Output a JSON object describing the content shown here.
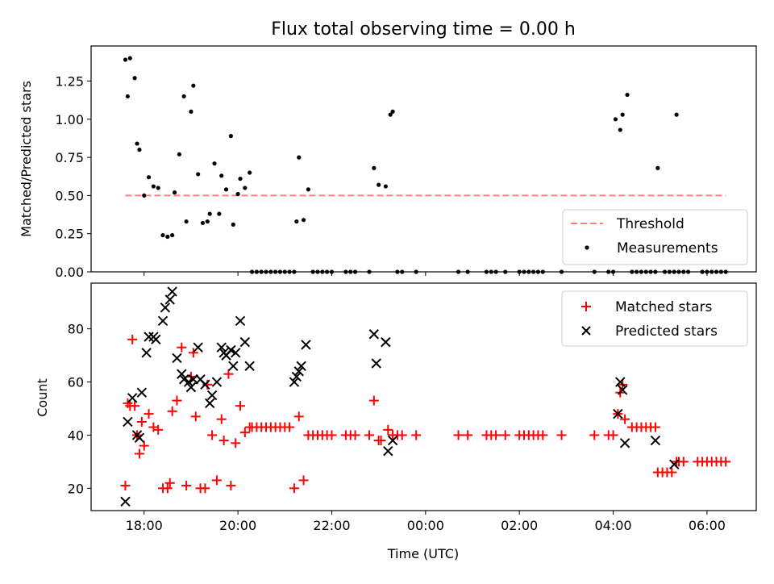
{
  "chart_data": [
    {
      "type": "scatter",
      "title": "Flux total observing time = 0.00 h",
      "xlabel": "",
      "ylabel": "Matched/Predicted stars",
      "xlim": [
        16.87,
        31.05
      ],
      "ylim": [
        0,
        1.48
      ],
      "yticks": [
        0.0,
        0.25,
        0.5,
        0.75,
        1.0,
        1.25
      ],
      "ytick_labels": [
        "0.00",
        "0.25",
        "0.50",
        "0.75",
        "1.00",
        "1.25"
      ],
      "legend_position": "lower-right",
      "legend": [
        "Threshold",
        "Measurements"
      ],
      "threshold": {
        "name": "Threshold",
        "value": 0.5,
        "x_range": [
          17.6,
          30.4
        ],
        "color": "#ff7f7f",
        "style": "dashed"
      },
      "series": [
        {
          "name": "Measurements",
          "color": "#000000",
          "marker": "dot",
          "points": [
            [
              17.6,
              1.39
            ],
            [
              17.65,
              1.15
            ],
            [
              17.7,
              1.4
            ],
            [
              17.8,
              1.27
            ],
            [
              17.85,
              0.84
            ],
            [
              17.9,
              0.8
            ],
            [
              18.0,
              0.5
            ],
            [
              18.1,
              0.62
            ],
            [
              18.2,
              0.56
            ],
            [
              18.3,
              0.55
            ],
            [
              18.4,
              0.24
            ],
            [
              18.5,
              0.23
            ],
            [
              18.6,
              0.24
            ],
            [
              18.65,
              0.52
            ],
            [
              18.75,
              0.77
            ],
            [
              18.85,
              1.15
            ],
            [
              18.9,
              0.33
            ],
            [
              19.0,
              1.05
            ],
            [
              19.05,
              1.22
            ],
            [
              19.15,
              0.64
            ],
            [
              19.25,
              0.32
            ],
            [
              19.35,
              0.33
            ],
            [
              19.4,
              0.38
            ],
            [
              19.5,
              0.71
            ],
            [
              19.6,
              0.38
            ],
            [
              19.65,
              0.63
            ],
            [
              19.75,
              0.54
            ],
            [
              19.85,
              0.89
            ],
            [
              19.9,
              0.31
            ],
            [
              20.0,
              0.51
            ],
            [
              20.05,
              0.61
            ],
            [
              20.15,
              0.55
            ],
            [
              20.25,
              0.65
            ],
            [
              20.3,
              0.0
            ],
            [
              20.4,
              0.0
            ],
            [
              20.5,
              0.0
            ],
            [
              20.6,
              0.0
            ],
            [
              20.7,
              0.0
            ],
            [
              20.8,
              0.0
            ],
            [
              20.9,
              0.0
            ],
            [
              21.0,
              0.0
            ],
            [
              21.1,
              0.0
            ],
            [
              21.2,
              0.0
            ],
            [
              21.25,
              0.33
            ],
            [
              21.3,
              0.75
            ],
            [
              21.4,
              0.34
            ],
            [
              21.5,
              0.54
            ],
            [
              21.6,
              0.0
            ],
            [
              21.7,
              0.0
            ],
            [
              21.8,
              0.0
            ],
            [
              21.9,
              0.0
            ],
            [
              22.0,
              0.0
            ],
            [
              22.3,
              0.0
            ],
            [
              22.4,
              0.0
            ],
            [
              22.5,
              0.0
            ],
            [
              22.8,
              0.0
            ],
            [
              22.9,
              0.68
            ],
            [
              23.0,
              0.57
            ],
            [
              23.15,
              0.56
            ],
            [
              23.25,
              1.03
            ],
            [
              23.3,
              1.05
            ],
            [
              23.4,
              0.0
            ],
            [
              23.5,
              0.0
            ],
            [
              23.8,
              0.0
            ],
            [
              24.7,
              0.0
            ],
            [
              24.9,
              0.0
            ],
            [
              25.3,
              0.0
            ],
            [
              25.4,
              0.0
            ],
            [
              25.5,
              0.0
            ],
            [
              25.7,
              0.0
            ],
            [
              26.0,
              0.0
            ],
            [
              26.1,
              0.0
            ],
            [
              26.2,
              0.0
            ],
            [
              26.3,
              0.0
            ],
            [
              26.4,
              0.0
            ],
            [
              26.5,
              0.0
            ],
            [
              26.9,
              0.0
            ],
            [
              27.6,
              0.0
            ],
            [
              27.9,
              0.0
            ],
            [
              28.0,
              0.0
            ],
            [
              28.05,
              1.0
            ],
            [
              28.15,
              0.93
            ],
            [
              28.2,
              1.03
            ],
            [
              28.3,
              1.16
            ],
            [
              28.4,
              0.0
            ],
            [
              28.5,
              0.0
            ],
            [
              28.6,
              0.0
            ],
            [
              28.7,
              0.0
            ],
            [
              28.8,
              0.0
            ],
            [
              28.9,
              0.0
            ],
            [
              28.95,
              0.68
            ],
            [
              29.1,
              0.0
            ],
            [
              29.2,
              0.0
            ],
            [
              29.3,
              0.0
            ],
            [
              29.35,
              1.03
            ],
            [
              29.4,
              0.0
            ],
            [
              29.5,
              0.0
            ],
            [
              29.6,
              0.0
            ],
            [
              29.9,
              0.0
            ],
            [
              30.0,
              0.0
            ],
            [
              30.1,
              0.0
            ],
            [
              30.2,
              0.0
            ],
            [
              30.3,
              0.0
            ],
            [
              30.4,
              0.0
            ]
          ]
        }
      ]
    },
    {
      "type": "scatter",
      "title": "",
      "xlabel": "Time (UTC)",
      "ylabel": "Count",
      "xlim": [
        16.87,
        31.05
      ],
      "ylim": [
        11.6,
        97.2
      ],
      "yticks": [
        20,
        40,
        60,
        80
      ],
      "ytick_labels": [
        "20",
        "40",
        "60",
        "80"
      ],
      "xticks": [
        18,
        20,
        22,
        24,
        26,
        28,
        30
      ],
      "xtick_labels": [
        "18:00",
        "20:00",
        "22:00",
        "00:00",
        "02:00",
        "04:00",
        "06:00"
      ],
      "legend_position": "upper-right",
      "legend": [
        "Matched stars",
        "Predicted stars"
      ],
      "series": [
        {
          "name": "Matched stars",
          "color": "#ff0000",
          "marker": "plus",
          "points": [
            [
              17.6,
              21
            ],
            [
              17.65,
              52
            ],
            [
              17.7,
              51
            ],
            [
              17.75,
              76
            ],
            [
              17.8,
              51
            ],
            [
              17.85,
              40
            ],
            [
              17.9,
              33
            ],
            [
              17.95,
              45
            ],
            [
              18.0,
              36
            ],
            [
              18.1,
              48
            ],
            [
              18.2,
              43
            ],
            [
              18.3,
              42
            ],
            [
              18.4,
              20
            ],
            [
              18.5,
              20
            ],
            [
              18.55,
              22
            ],
            [
              18.6,
              49
            ],
            [
              18.7,
              53
            ],
            [
              18.8,
              73
            ],
            [
              18.9,
              21
            ],
            [
              19.0,
              62
            ],
            [
              19.05,
              71
            ],
            [
              19.1,
              47
            ],
            [
              19.2,
              20
            ],
            [
              19.3,
              20
            ],
            [
              19.35,
              59
            ],
            [
              19.45,
              40
            ],
            [
              19.55,
              23
            ],
            [
              19.65,
              46
            ],
            [
              19.7,
              38
            ],
            [
              19.8,
              63
            ],
            [
              19.85,
              21
            ],
            [
              19.95,
              37
            ],
            [
              20.05,
              51
            ],
            [
              20.15,
              41
            ],
            [
              20.25,
              43
            ],
            [
              20.3,
              43
            ],
            [
              20.4,
              43
            ],
            [
              20.5,
              43
            ],
            [
              20.6,
              43
            ],
            [
              20.7,
              43
            ],
            [
              20.8,
              43
            ],
            [
              20.9,
              43
            ],
            [
              21.0,
              43
            ],
            [
              21.1,
              43
            ],
            [
              21.2,
              20
            ],
            [
              21.3,
              47
            ],
            [
              21.4,
              23
            ],
            [
              21.5,
              40
            ],
            [
              21.6,
              40
            ],
            [
              21.7,
              40
            ],
            [
              21.8,
              40
            ],
            [
              21.9,
              40
            ],
            [
              22.0,
              40
            ],
            [
              22.3,
              40
            ],
            [
              22.4,
              40
            ],
            [
              22.5,
              40
            ],
            [
              22.8,
              40
            ],
            [
              22.9,
              53
            ],
            [
              23.0,
              38
            ],
            [
              23.05,
              38
            ],
            [
              23.2,
              42
            ],
            [
              23.3,
              40
            ],
            [
              23.4,
              40
            ],
            [
              23.5,
              40
            ],
            [
              23.8,
              40
            ],
            [
              24.7,
              40
            ],
            [
              24.9,
              40
            ],
            [
              25.3,
              40
            ],
            [
              25.4,
              40
            ],
            [
              25.5,
              40
            ],
            [
              25.7,
              40
            ],
            [
              26.0,
              40
            ],
            [
              26.1,
              40
            ],
            [
              26.2,
              40
            ],
            [
              26.3,
              40
            ],
            [
              26.4,
              40
            ],
            [
              26.5,
              40
            ],
            [
              26.9,
              40
            ],
            [
              27.6,
              40
            ],
            [
              27.9,
              40
            ],
            [
              28.0,
              40
            ],
            [
              28.1,
              48
            ],
            [
              28.15,
              56
            ],
            [
              28.2,
              59
            ],
            [
              28.25,
              46
            ],
            [
              28.4,
              43
            ],
            [
              28.5,
              43
            ],
            [
              28.6,
              43
            ],
            [
              28.7,
              43
            ],
            [
              28.8,
              43
            ],
            [
              28.9,
              43
            ],
            [
              28.95,
              26
            ],
            [
              29.05,
              26
            ],
            [
              29.15,
              26
            ],
            [
              29.25,
              26
            ],
            [
              29.35,
              30
            ],
            [
              29.4,
              30
            ],
            [
              29.5,
              30
            ],
            [
              29.8,
              30
            ],
            [
              29.9,
              30
            ],
            [
              30.0,
              30
            ],
            [
              30.1,
              30
            ],
            [
              30.2,
              30
            ],
            [
              30.3,
              30
            ],
            [
              30.4,
              30
            ]
          ]
        },
        {
          "name": "Predicted stars",
          "color": "#000000",
          "marker": "cross",
          "points": [
            [
              17.6,
              15
            ],
            [
              17.65,
              45
            ],
            [
              17.75,
              54
            ],
            [
              17.85,
              40
            ],
            [
              17.9,
              39
            ],
            [
              17.95,
              56
            ],
            [
              18.05,
              71
            ],
            [
              18.1,
              77
            ],
            [
              18.2,
              77
            ],
            [
              18.25,
              76
            ],
            [
              18.4,
              83
            ],
            [
              18.45,
              88
            ],
            [
              18.55,
              91
            ],
            [
              18.6,
              94
            ],
            [
              18.7,
              69
            ],
            [
              18.8,
              63
            ],
            [
              18.85,
              61
            ],
            [
              18.95,
              60
            ],
            [
              19.0,
              58
            ],
            [
              19.05,
              61
            ],
            [
              19.15,
              73
            ],
            [
              19.2,
              61
            ],
            [
              19.3,
              59
            ],
            [
              19.4,
              52
            ],
            [
              19.45,
              55
            ],
            [
              19.55,
              60
            ],
            [
              19.65,
              73
            ],
            [
              19.7,
              71
            ],
            [
              19.75,
              70
            ],
            [
              19.85,
              72
            ],
            [
              19.9,
              66
            ],
            [
              19.95,
              71
            ],
            [
              20.05,
              83
            ],
            [
              20.15,
              75
            ],
            [
              20.25,
              66
            ],
            [
              21.2,
              60
            ],
            [
              21.25,
              62
            ],
            [
              21.3,
              64
            ],
            [
              21.35,
              66
            ],
            [
              21.45,
              74
            ],
            [
              22.9,
              78
            ],
            [
              22.95,
              67
            ],
            [
              23.15,
              75
            ],
            [
              23.2,
              34
            ],
            [
              23.3,
              38
            ],
            [
              28.1,
              48
            ],
            [
              28.15,
              60
            ],
            [
              28.2,
              57
            ],
            [
              28.25,
              37
            ],
            [
              28.9,
              38
            ],
            [
              29.3,
              29
            ]
          ]
        }
      ]
    }
  ]
}
